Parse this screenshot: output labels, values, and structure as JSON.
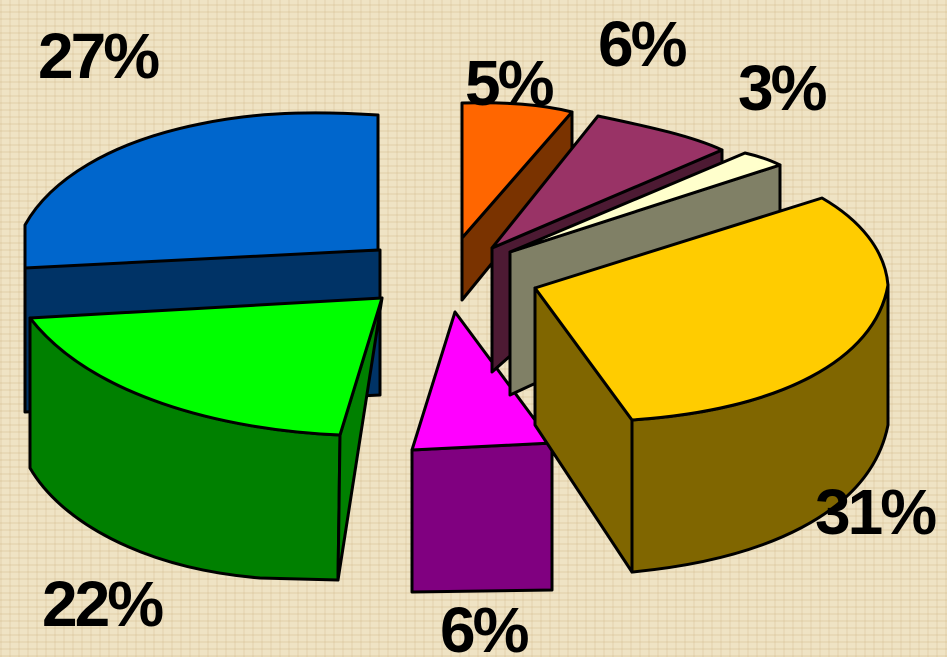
{
  "chart_data": {
    "type": "pie",
    "style": "3d-exploded",
    "slices": [
      {
        "value": 27,
        "label": "27%",
        "color": "#0066cc",
        "side_color": "#003366"
      },
      {
        "value": 5,
        "label": "5%",
        "color": "#ff6600",
        "side_color": "#7a3300"
      },
      {
        "value": 6,
        "label": "6%",
        "color": "#993366",
        "side_color": "#4d1a33"
      },
      {
        "value": 3,
        "label": "3%",
        "color": "#ffffcc",
        "side_color": "#808066"
      },
      {
        "value": 31,
        "label": "31%",
        "color": "#ffcc00",
        "side_color": "#806600"
      },
      {
        "value": 6,
        "label": "6%",
        "color": "#ff00ff",
        "side_color": "#800080"
      },
      {
        "value": 22,
        "label": "22%",
        "color": "#00ff00",
        "side_color": "#008000"
      }
    ]
  }
}
